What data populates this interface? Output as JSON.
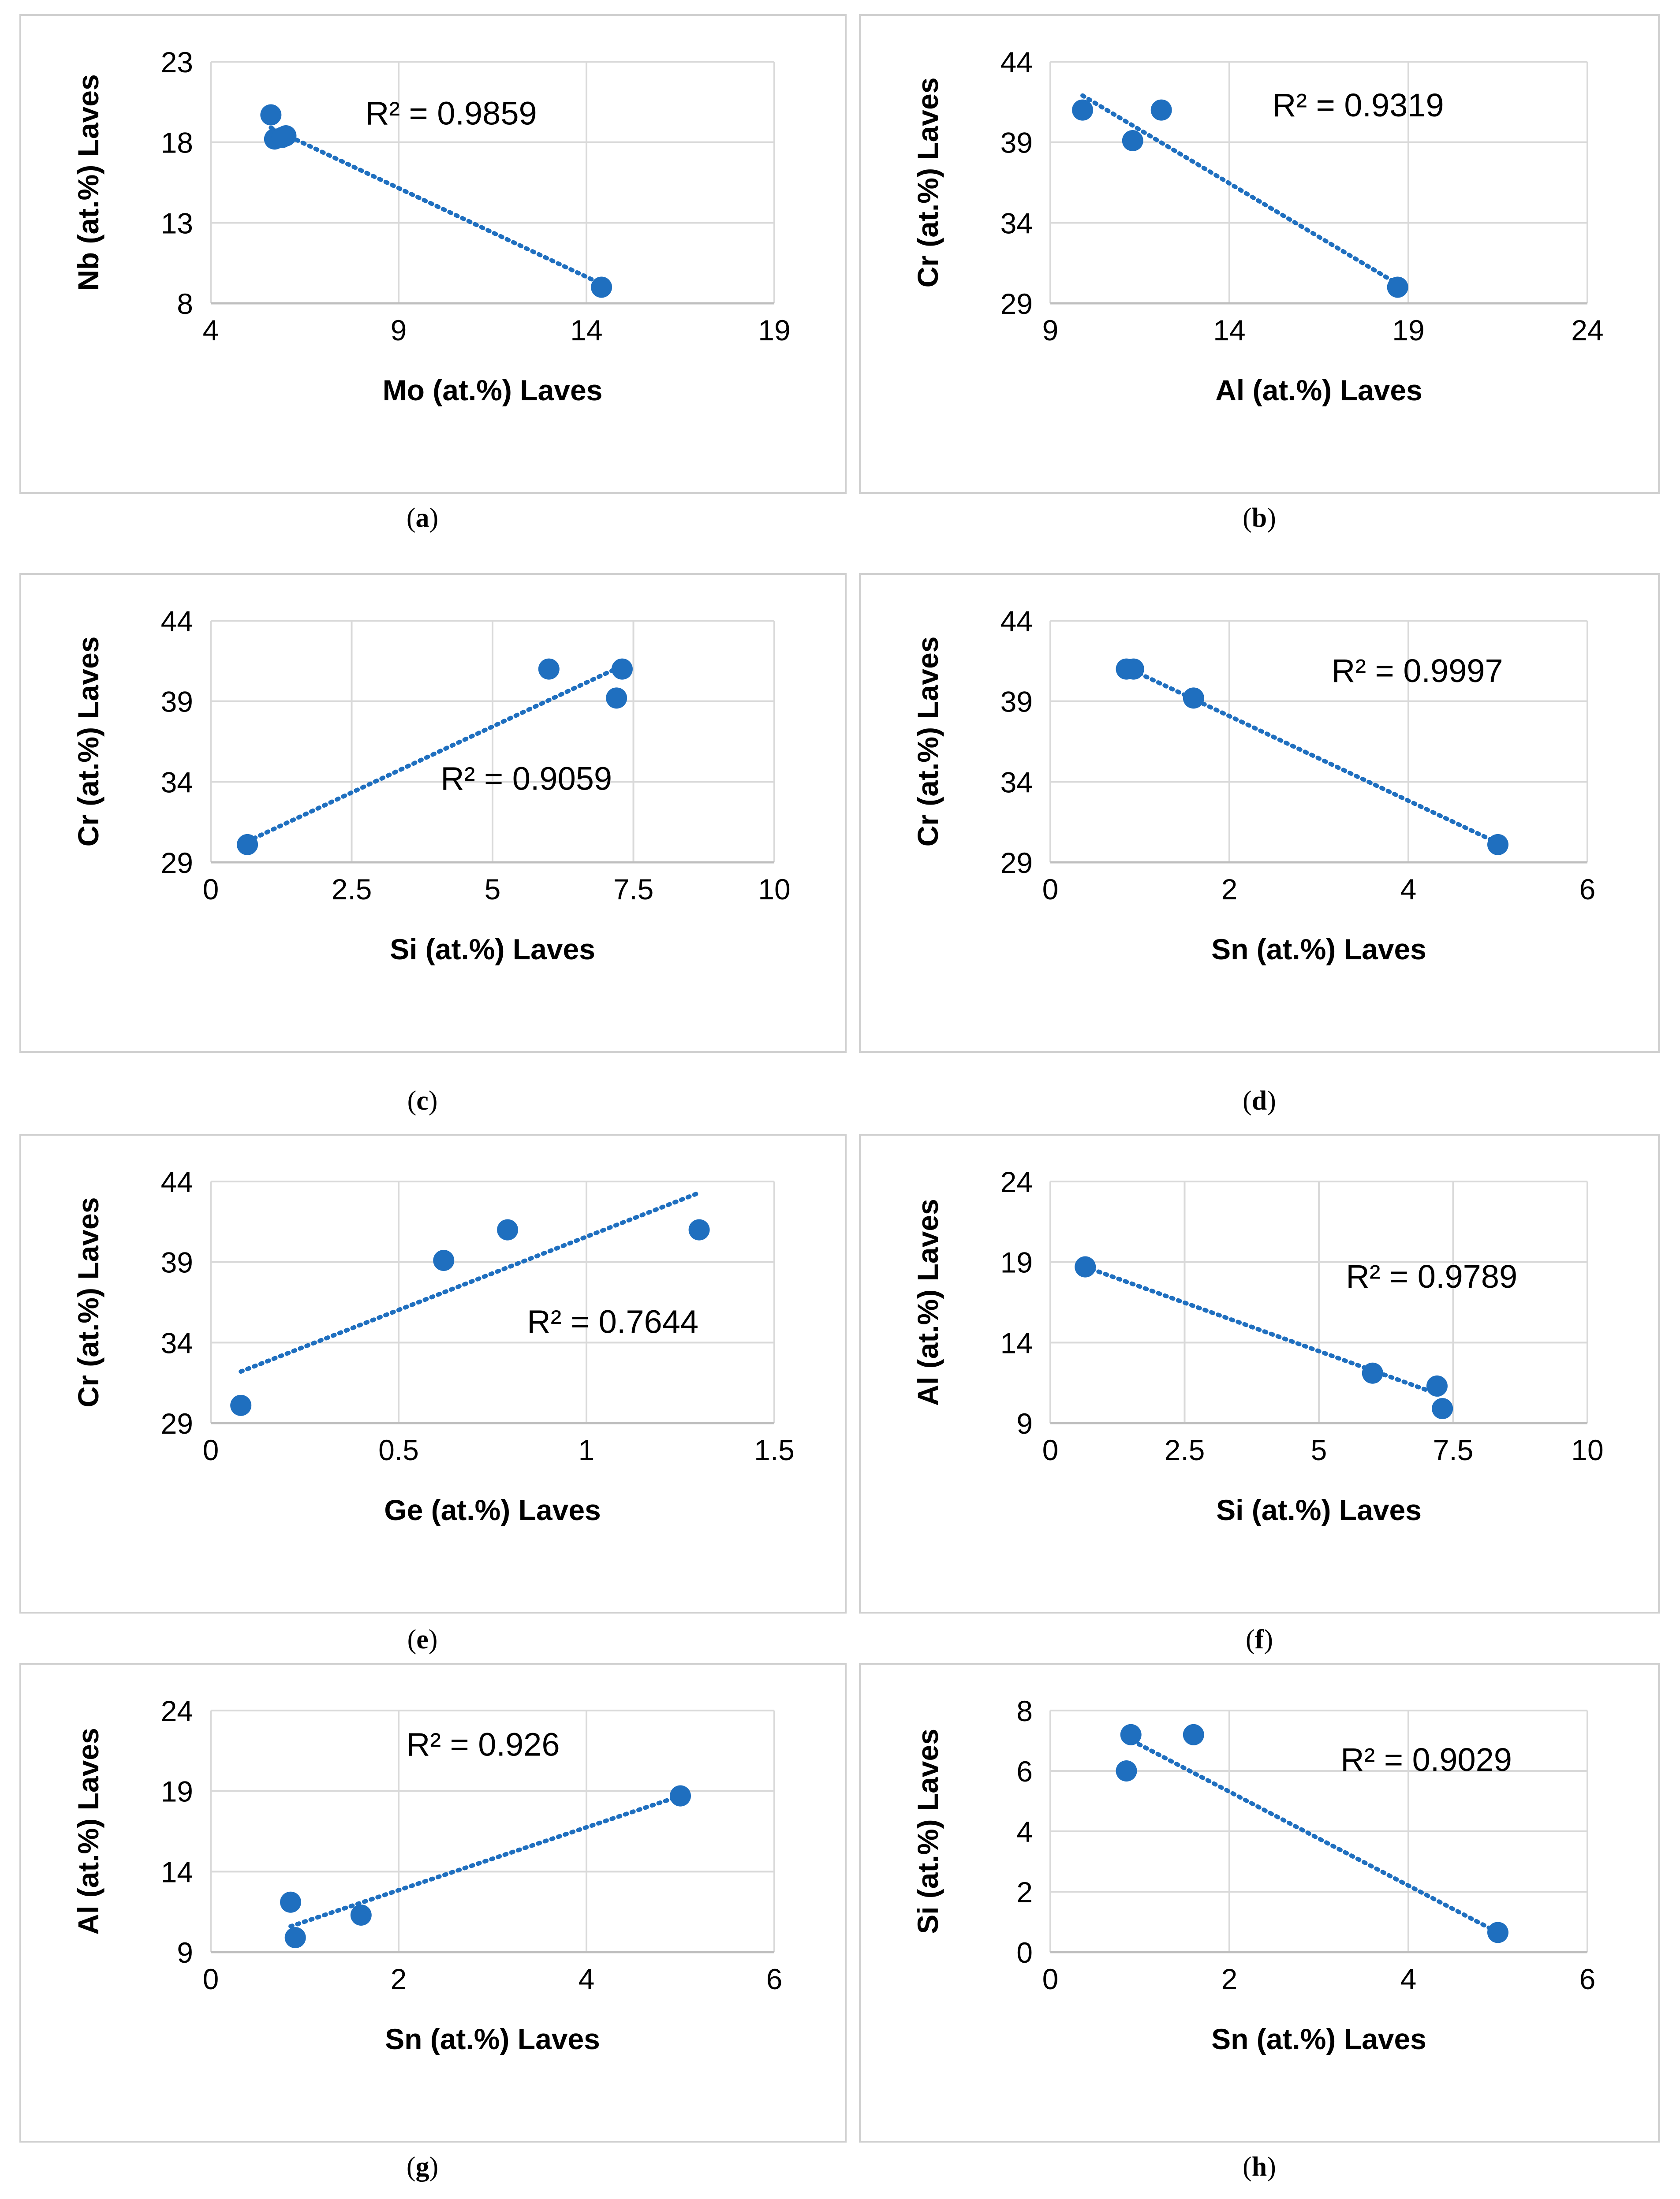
{
  "colors": {
    "point": "#1F6FBF",
    "trend": "#1F6FBF",
    "grid": "#d9d9d9",
    "axis_text": "#000000"
  },
  "chart_data": [
    {
      "id": "a",
      "type": "scatter",
      "caption_letter": "a",
      "xlabel": "Mo (at.%) Laves",
      "ylabel": "Nb (at.%) Laves",
      "xlim": [
        4,
        19
      ],
      "ylim": [
        8,
        23
      ],
      "xticks": [
        4,
        9,
        14,
        19
      ],
      "yticks": [
        8,
        13,
        18,
        23
      ],
      "xtick_labels": [
        "4",
        "9",
        "14",
        "19"
      ],
      "ytick_labels": [
        "8",
        "13",
        "18",
        "23"
      ],
      "points": [
        [
          5.6,
          19.7
        ],
        [
          5.7,
          18.2
        ],
        [
          6.0,
          18.4
        ],
        [
          5.9,
          18.3
        ],
        [
          14.4,
          9.0
        ]
      ],
      "trendline": [
        [
          5.6,
          18.9
        ],
        [
          14.4,
          9.2
        ]
      ],
      "r2_label": "R² = 0.9859",
      "r2_pos": [
        10.4,
        19.1
      ]
    },
    {
      "id": "b",
      "type": "scatter",
      "caption_letter": "b",
      "xlabel": "Al (at.%) Laves",
      "ylabel": "Cr (at.%) Laves",
      "xlim": [
        9,
        24
      ],
      "ylim": [
        29,
        44
      ],
      "xticks": [
        9,
        14,
        19,
        24
      ],
      "yticks": [
        29,
        34,
        39,
        44
      ],
      "xtick_labels": [
        "9",
        "14",
        "19",
        "24"
      ],
      "ytick_labels": [
        "29",
        "34",
        "39",
        "44"
      ],
      "points": [
        [
          9.9,
          41.0
        ],
        [
          11.3,
          39.1
        ],
        [
          12.1,
          41.0
        ],
        [
          18.7,
          30.0
        ]
      ],
      "trendline": [
        [
          9.9,
          41.9
        ],
        [
          18.7,
          30.2
        ]
      ],
      "r2_label": "R² = 0.9319",
      "r2_pos": [
        17.6,
        40.6
      ]
    },
    {
      "id": "c",
      "type": "scatter",
      "caption_letter": "c",
      "xlabel": "Si (at.%) Laves",
      "ylabel": "Cr (at.%) Laves",
      "xlim": [
        0,
        10
      ],
      "ylim": [
        29,
        44
      ],
      "xticks": [
        0,
        2.5,
        5,
        7.5,
        10
      ],
      "yticks": [
        29,
        34,
        39,
        44
      ],
      "xtick_labels": [
        "0",
        "2.5",
        "5",
        "7.5",
        "10"
      ],
      "ytick_labels": [
        "29",
        "34",
        "39",
        "44"
      ],
      "points": [
        [
          0.65,
          30.1
        ],
        [
          6.0,
          41.0
        ],
        [
          7.2,
          39.2
        ],
        [
          7.3,
          41.0
        ]
      ],
      "trendline": [
        [
          0.65,
          30.3
        ],
        [
          7.3,
          41.2
        ]
      ],
      "r2_label": "R² = 0.9059",
      "r2_pos": [
        5.6,
        33.5
      ]
    },
    {
      "id": "d",
      "type": "scatter",
      "caption_letter": "d",
      "xlabel": "Sn (at.%) Laves",
      "ylabel": "Cr (at.%) Laves",
      "xlim": [
        0,
        6
      ],
      "ylim": [
        29,
        44
      ],
      "xticks": [
        0,
        2,
        4,
        6
      ],
      "yticks": [
        29,
        34,
        39,
        44
      ],
      "xtick_labels": [
        "0",
        "2",
        "4",
        "6"
      ],
      "ytick_labels": [
        "29",
        "34",
        "39",
        "44"
      ],
      "points": [
        [
          0.85,
          41.0
        ],
        [
          0.93,
          41.0
        ],
        [
          1.6,
          39.2
        ],
        [
          5.0,
          30.1
        ]
      ],
      "trendline": [
        [
          0.85,
          41.1
        ],
        [
          5.0,
          30.2
        ]
      ],
      "r2_label": "R² = 0.9997",
      "r2_pos": [
        4.1,
        40.2
      ]
    },
    {
      "id": "e",
      "type": "scatter",
      "caption_letter": "e",
      "xlabel": "Ge (at.%) Laves",
      "ylabel": "Cr (at.%) Laves",
      "xlim": [
        0,
        1.5
      ],
      "ylim": [
        29,
        44
      ],
      "xticks": [
        0,
        0.5,
        1,
        1.5
      ],
      "yticks": [
        29,
        34,
        39,
        44
      ],
      "xtick_labels": [
        "0",
        "0.5",
        "1",
        "1.5"
      ],
      "ytick_labels": [
        "29",
        "34",
        "39",
        "44"
      ],
      "points": [
        [
          0.08,
          30.1
        ],
        [
          0.62,
          39.1
        ],
        [
          0.79,
          41.0
        ],
        [
          1.3,
          41.0
        ]
      ],
      "trendline": [
        [
          0.08,
          32.2
        ],
        [
          1.3,
          43.3
        ]
      ],
      "r2_label": "R² = 0.7644",
      "r2_pos": [
        1.07,
        34.6
      ]
    },
    {
      "id": "f",
      "type": "scatter",
      "caption_letter": "f",
      "xlabel": "Si (at.%) Laves",
      "ylabel": "Al (at.%) Laves",
      "xlim": [
        0,
        10
      ],
      "ylim": [
        9,
        24
      ],
      "xticks": [
        0,
        2.5,
        5,
        7.5,
        10
      ],
      "yticks": [
        9,
        14,
        19,
        24
      ],
      "xtick_labels": [
        "0",
        "2.5",
        "5",
        "7.5",
        "10"
      ],
      "ytick_labels": [
        "9",
        "14",
        "19",
        "24"
      ],
      "points": [
        [
          0.65,
          18.7
        ],
        [
          6.0,
          12.1
        ],
        [
          7.2,
          11.3
        ],
        [
          7.3,
          9.9
        ]
      ],
      "trendline": [
        [
          0.65,
          18.7
        ],
        [
          7.3,
          10.7
        ]
      ],
      "r2_label": "R² = 0.9789",
      "r2_pos": [
        7.1,
        17.4
      ]
    },
    {
      "id": "g",
      "type": "scatter",
      "caption_letter": "g",
      "xlabel": "Sn (at.%) Laves",
      "ylabel": "Al (at.%) Laves",
      "xlim": [
        0,
        6
      ],
      "ylim": [
        9,
        24
      ],
      "xticks": [
        0,
        2,
        4,
        6
      ],
      "yticks": [
        9,
        14,
        19,
        24
      ],
      "xtick_labels": [
        "0",
        "2",
        "4",
        "6"
      ],
      "ytick_labels": [
        "9",
        "14",
        "19",
        "24"
      ],
      "points": [
        [
          0.85,
          12.1
        ],
        [
          0.9,
          9.9
        ],
        [
          1.6,
          11.3
        ],
        [
          5.0,
          18.7
        ]
      ],
      "trendline": [
        [
          0.85,
          10.6
        ],
        [
          5.0,
          18.7
        ]
      ],
      "r2_label": "R² = 0.926",
      "r2_pos": [
        2.9,
        21.2
      ]
    },
    {
      "id": "h",
      "type": "scatter",
      "caption_letter": "h",
      "xlabel": "Sn (at.%) Laves",
      "ylabel": "Si (at.%) Laves",
      "xlim": [
        0,
        6
      ],
      "ylim": [
        0,
        8
      ],
      "xticks": [
        0,
        2,
        4,
        6
      ],
      "yticks": [
        0,
        2,
        4,
        6,
        8
      ],
      "xtick_labels": [
        "0",
        "2",
        "4",
        "6"
      ],
      "ytick_labels": [
        "0",
        "2",
        "4",
        "6",
        "8"
      ],
      "points": [
        [
          0.85,
          6.0
        ],
        [
          0.9,
          7.2
        ],
        [
          1.6,
          7.2
        ],
        [
          5.0,
          0.65
        ]
      ],
      "trendline": [
        [
          0.85,
          7.1
        ],
        [
          5.0,
          0.65
        ]
      ],
      "r2_label": "R² = 0.9029",
      "r2_pos": [
        4.2,
        6.0
      ]
    }
  ]
}
